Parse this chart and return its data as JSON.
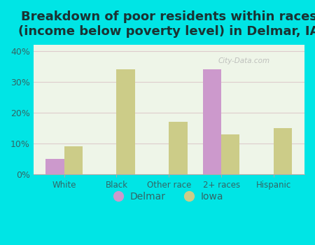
{
  "title": "Breakdown of poor residents within races\n(income below poverty level) in Delmar, IA",
  "categories": [
    "White",
    "Black",
    "Other race",
    "2+ races",
    "Hispanic"
  ],
  "delmar_values": [
    5.0,
    0.0,
    0.0,
    34.0,
    0.0
  ],
  "iowa_values": [
    9.0,
    34.0,
    17.0,
    13.0,
    15.0
  ],
  "delmar_color": "#cc99cc",
  "iowa_color": "#cccc88",
  "background_color": "#eef5e8",
  "outer_background": "#00e5e5",
  "ylim": [
    0,
    42
  ],
  "yticks": [
    0,
    10,
    20,
    30,
    40
  ],
  "ytick_labels": [
    "0%",
    "10%",
    "20%",
    "30%",
    "40%"
  ],
  "bar_width": 0.35,
  "title_fontsize": 13,
  "label_color": "#336666",
  "legend_labels": [
    "Delmar",
    "Iowa"
  ],
  "watermark": "City-Data.com"
}
